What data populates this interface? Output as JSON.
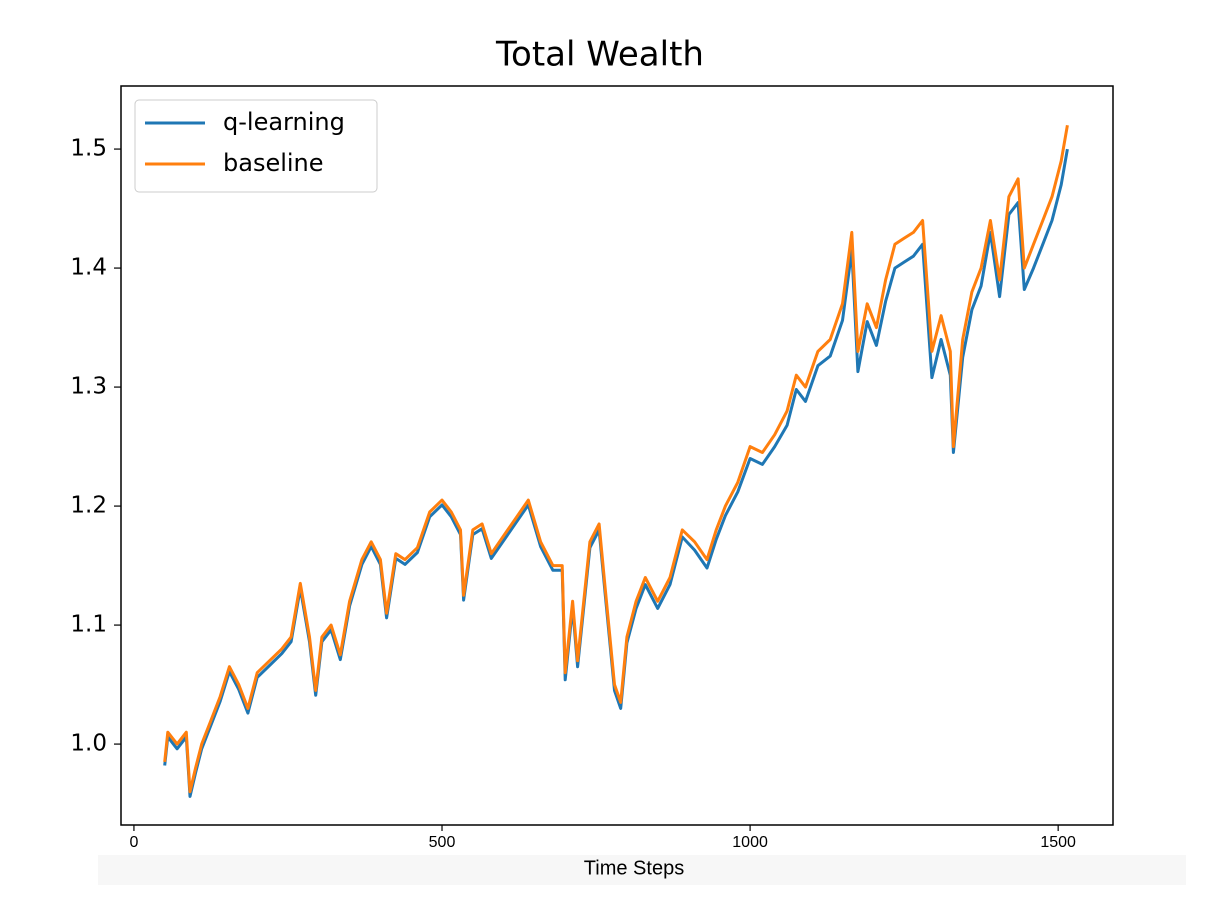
{
  "chart_data": {
    "type": "line",
    "title": "Total Wealth",
    "x_label": "Time Steps",
    "x": [
      50,
      55,
      70,
      85,
      91,
      100,
      110,
      125,
      140,
      155,
      170,
      185,
      200,
      220,
      240,
      255,
      270,
      285,
      295,
      305,
      320,
      335,
      350,
      370,
      385,
      400,
      410,
      425,
      440,
      460,
      480,
      500,
      515,
      530,
      535,
      550,
      565,
      580,
      600,
      620,
      640,
      660,
      680,
      695,
      700,
      712,
      720,
      740,
      755,
      765,
      780,
      790,
      800,
      815,
      830,
      850,
      870,
      890,
      910,
      930,
      945,
      960,
      980,
      1000,
      1020,
      1040,
      1060,
      1075,
      1090,
      1110,
      1130,
      1150,
      1165,
      1175,
      1190,
      1205,
      1220,
      1235,
      1250,
      1265,
      1280,
      1295,
      1310,
      1325,
      1330,
      1345,
      1360,
      1375,
      1390,
      1405,
      1420,
      1435,
      1445,
      1460,
      1475,
      1490,
      1505,
      1515
    ],
    "series": [
      {
        "name": "q-learning",
        "color": "#1f77b4",
        "values": [
          0.982,
          1.006,
          0.996,
          1.006,
          0.956,
          0.976,
          0.996,
          1.016,
          1.036,
          1.061,
          1.046,
          1.026,
          1.056,
          1.066,
          1.076,
          1.086,
          1.131,
          1.086,
          1.041,
          1.086,
          1.096,
          1.071,
          1.116,
          1.151,
          1.166,
          1.151,
          1.106,
          1.156,
          1.151,
          1.161,
          1.191,
          1.201,
          1.191,
          1.176,
          1.121,
          1.176,
          1.181,
          1.156,
          1.171,
          1.186,
          1.201,
          1.166,
          1.146,
          1.146,
          1.054,
          1.115,
          1.065,
          1.165,
          1.18,
          1.125,
          1.045,
          1.03,
          1.085,
          1.114,
          1.134,
          1.114,
          1.134,
          1.174,
          1.163,
          1.148,
          1.172,
          1.192,
          1.212,
          1.24,
          1.235,
          1.25,
          1.268,
          1.298,
          1.288,
          1.318,
          1.326,
          1.356,
          1.415,
          1.313,
          1.355,
          1.335,
          1.372,
          1.4,
          1.405,
          1.41,
          1.42,
          1.308,
          1.34,
          1.31,
          1.245,
          1.325,
          1.365,
          1.385,
          1.43,
          1.376,
          1.445,
          1.455,
          1.382,
          1.4,
          1.42,
          1.44,
          1.47,
          1.5
        ]
      },
      {
        "name": "baseline",
        "color": "#ff7f0e",
        "values": [
          0.985,
          1.01,
          1.0,
          1.01,
          0.96,
          0.98,
          1.0,
          1.02,
          1.04,
          1.065,
          1.05,
          1.03,
          1.06,
          1.07,
          1.08,
          1.09,
          1.135,
          1.09,
          1.045,
          1.09,
          1.1,
          1.075,
          1.12,
          1.155,
          1.17,
          1.155,
          1.11,
          1.16,
          1.155,
          1.165,
          1.195,
          1.205,
          1.195,
          1.18,
          1.125,
          1.18,
          1.185,
          1.16,
          1.175,
          1.19,
          1.205,
          1.17,
          1.15,
          1.15,
          1.06,
          1.12,
          1.07,
          1.17,
          1.185,
          1.13,
          1.05,
          1.035,
          1.09,
          1.12,
          1.14,
          1.12,
          1.14,
          1.18,
          1.17,
          1.155,
          1.18,
          1.2,
          1.22,
          1.25,
          1.245,
          1.26,
          1.28,
          1.31,
          1.3,
          1.33,
          1.34,
          1.37,
          1.43,
          1.33,
          1.37,
          1.35,
          1.39,
          1.42,
          1.425,
          1.43,
          1.44,
          1.33,
          1.36,
          1.33,
          1.25,
          1.34,
          1.38,
          1.4,
          1.44,
          1.39,
          1.46,
          1.475,
          1.4,
          1.42,
          1.44,
          1.46,
          1.49,
          1.52
        ]
      }
    ],
    "xlim": [
      -21,
      1589
    ],
    "ylim": [
      0.932,
      1.553
    ],
    "xticks": [
      0,
      500,
      1000,
      1500
    ],
    "yticks": [
      {
        "value": 1.0,
        "label": "1.0"
      },
      1.1,
      1.2,
      1.3,
      1.4,
      1.5
    ],
    "legend": "upper left",
    "grid": false
  }
}
